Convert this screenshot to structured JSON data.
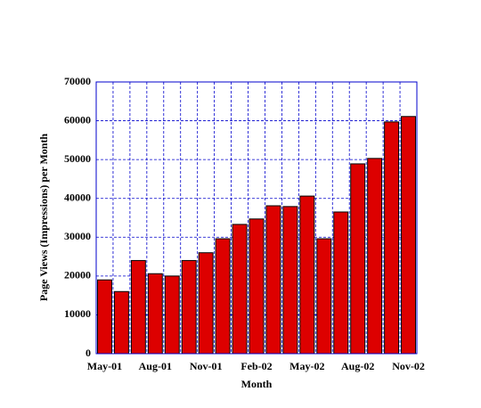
{
  "chart_data": {
    "type": "bar",
    "x_label": "Month",
    "y_label": "Page Views (Impressions) per Month",
    "categories": [
      "May-01",
      null,
      null,
      "Aug-01",
      null,
      null,
      "Nov-01",
      null,
      null,
      "Feb-02",
      null,
      null,
      "May-02",
      null,
      null,
      "Aug-02",
      null,
      null,
      "Nov-02"
    ],
    "values": [
      19000,
      16000,
      24000,
      20600,
      20000,
      24000,
      26000,
      29600,
      33300,
      34700,
      38100,
      37900,
      40600,
      29600,
      36500,
      48900,
      50300,
      59700,
      61100
    ],
    "color": "#dd0000",
    "ylim": [
      0,
      70000
    ],
    "yticks": [
      0,
      10000,
      20000,
      30000,
      40000,
      50000,
      60000,
      70000
    ],
    "grid": true
  }
}
